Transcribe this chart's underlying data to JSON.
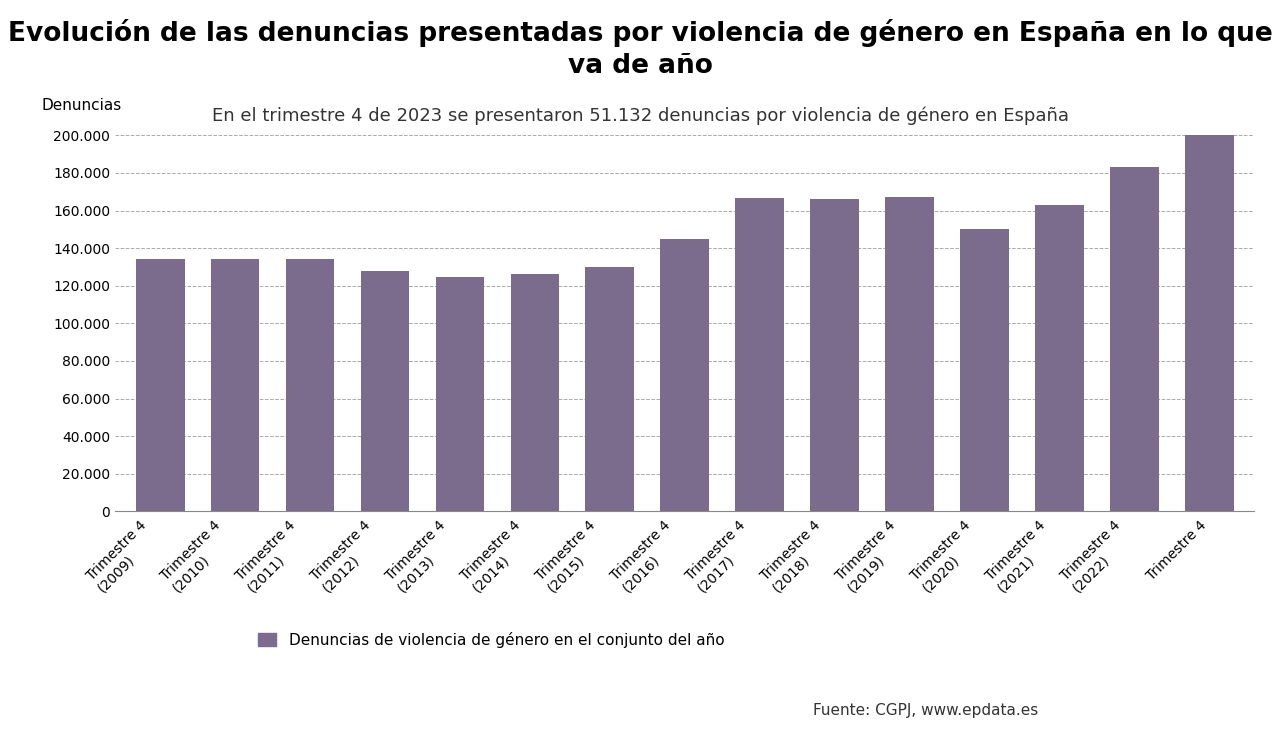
{
  "title_line1": "Evolución de las denuncias presentadas por violencia de género en España en lo que",
  "title_line2": "va de año",
  "subtitle": "En el trimestre 4 de 2023 se presentaron 51.132 denuncias por violencia de género en España",
  "ylabel": "Denuncias",
  "categories": [
    "Trimestre 4\n(2009)",
    "Trimestre 4\n(2010)",
    "Trimestre 4\n(2011)",
    "Trimestre 4\n(2012)",
    "Trimestre 4\n(2013)",
    "Trimestre 4\n(2014)",
    "Trimestre 4\n(2015)",
    "Trimestre 4\n(2016)",
    "Trimestre 4\n(2017)",
    "Trimestre 4\n(2018)",
    "Trimestre 4\n(2019)",
    "Trimestre 4\n(2020)",
    "Trimestre 4\n(2021)",
    "Trimestre 4\n(2022)",
    "Trimestre 4"
  ],
  "values": [
    134005,
    134000,
    134000,
    128000,
    124500,
    126000,
    130000,
    145000,
    166500,
    166000,
    167000,
    150000,
    163000,
    183000,
    200000
  ],
  "bar_color": "#7b6b8d",
  "background_color": "#ffffff",
  "ylim": [
    0,
    210000
  ],
  "yticks": [
    0,
    20000,
    40000,
    60000,
    80000,
    100000,
    120000,
    140000,
    160000,
    180000,
    200000
  ],
  "legend_label": "Denuncias de violencia de género en el conjunto del año",
  "source_label": "Fuente: CGPJ, www.epdata.es",
  "title_fontsize": 19,
  "subtitle_fontsize": 13,
  "ylabel_fontsize": 11,
  "tick_fontsize": 10,
  "legend_fontsize": 11
}
